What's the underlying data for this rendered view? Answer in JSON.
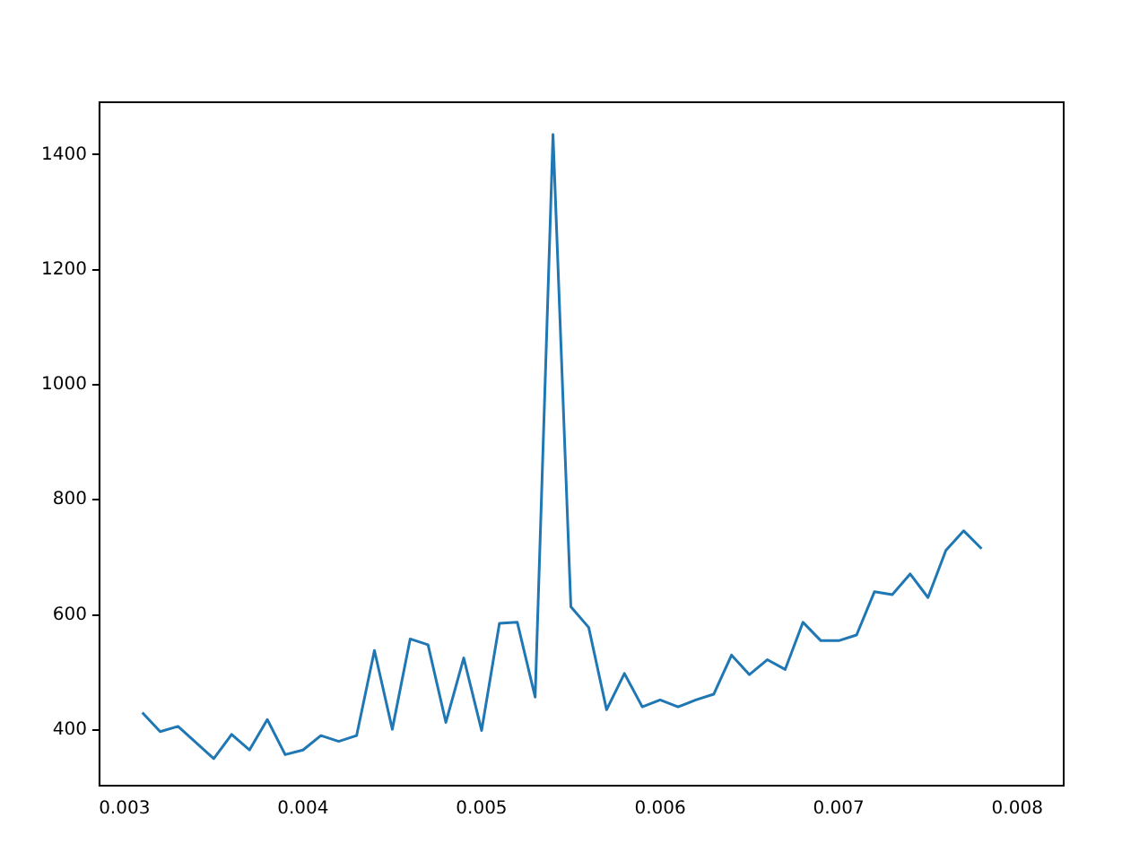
{
  "chart_data": {
    "type": "line",
    "x": [
      0.0031,
      0.0032,
      0.0033,
      0.0034,
      0.0035,
      0.0036,
      0.0037,
      0.0038,
      0.0039,
      0.004,
      0.0041,
      0.0042,
      0.0043,
      0.0044,
      0.0045,
      0.0046,
      0.0047,
      0.0048,
      0.0049,
      0.005,
      0.0051,
      0.0052,
      0.0053,
      0.0054,
      0.0055,
      0.0056,
      0.0057,
      0.0058,
      0.0059,
      0.006,
      0.0061,
      0.0062,
      0.0063,
      0.0064,
      0.0065,
      0.0066,
      0.0067,
      0.0068,
      0.0069,
      0.007,
      0.0071,
      0.0072,
      0.0073,
      0.0074,
      0.0075,
      0.0076,
      0.0077,
      0.0078
    ],
    "series": [
      {
        "color": "#1f77b4",
        "values": [
          430,
          397,
          406,
          378,
          350,
          392,
          365,
          418,
          357,
          365,
          390,
          380,
          390,
          538,
          401,
          558,
          548,
          413,
          525,
          399,
          585,
          587,
          457,
          1435,
          614,
          578,
          435,
          498,
          440,
          452,
          440,
          452,
          462,
          530,
          496,
          522,
          505,
          587,
          555,
          555,
          565,
          640,
          635,
          671,
          630,
          712,
          746,
          715
        ]
      }
    ],
    "xlim": [
      0.00286,
      0.00826
    ],
    "ylim": [
      303,
      1491
    ],
    "xticks": [
      0.003,
      0.004,
      0.005,
      0.006,
      0.007,
      0.008
    ],
    "yticks": [
      400,
      600,
      800,
      1000,
      1200,
      1400
    ],
    "grid": false,
    "legend": false,
    "marker": "none",
    "line_style": "solid"
  }
}
